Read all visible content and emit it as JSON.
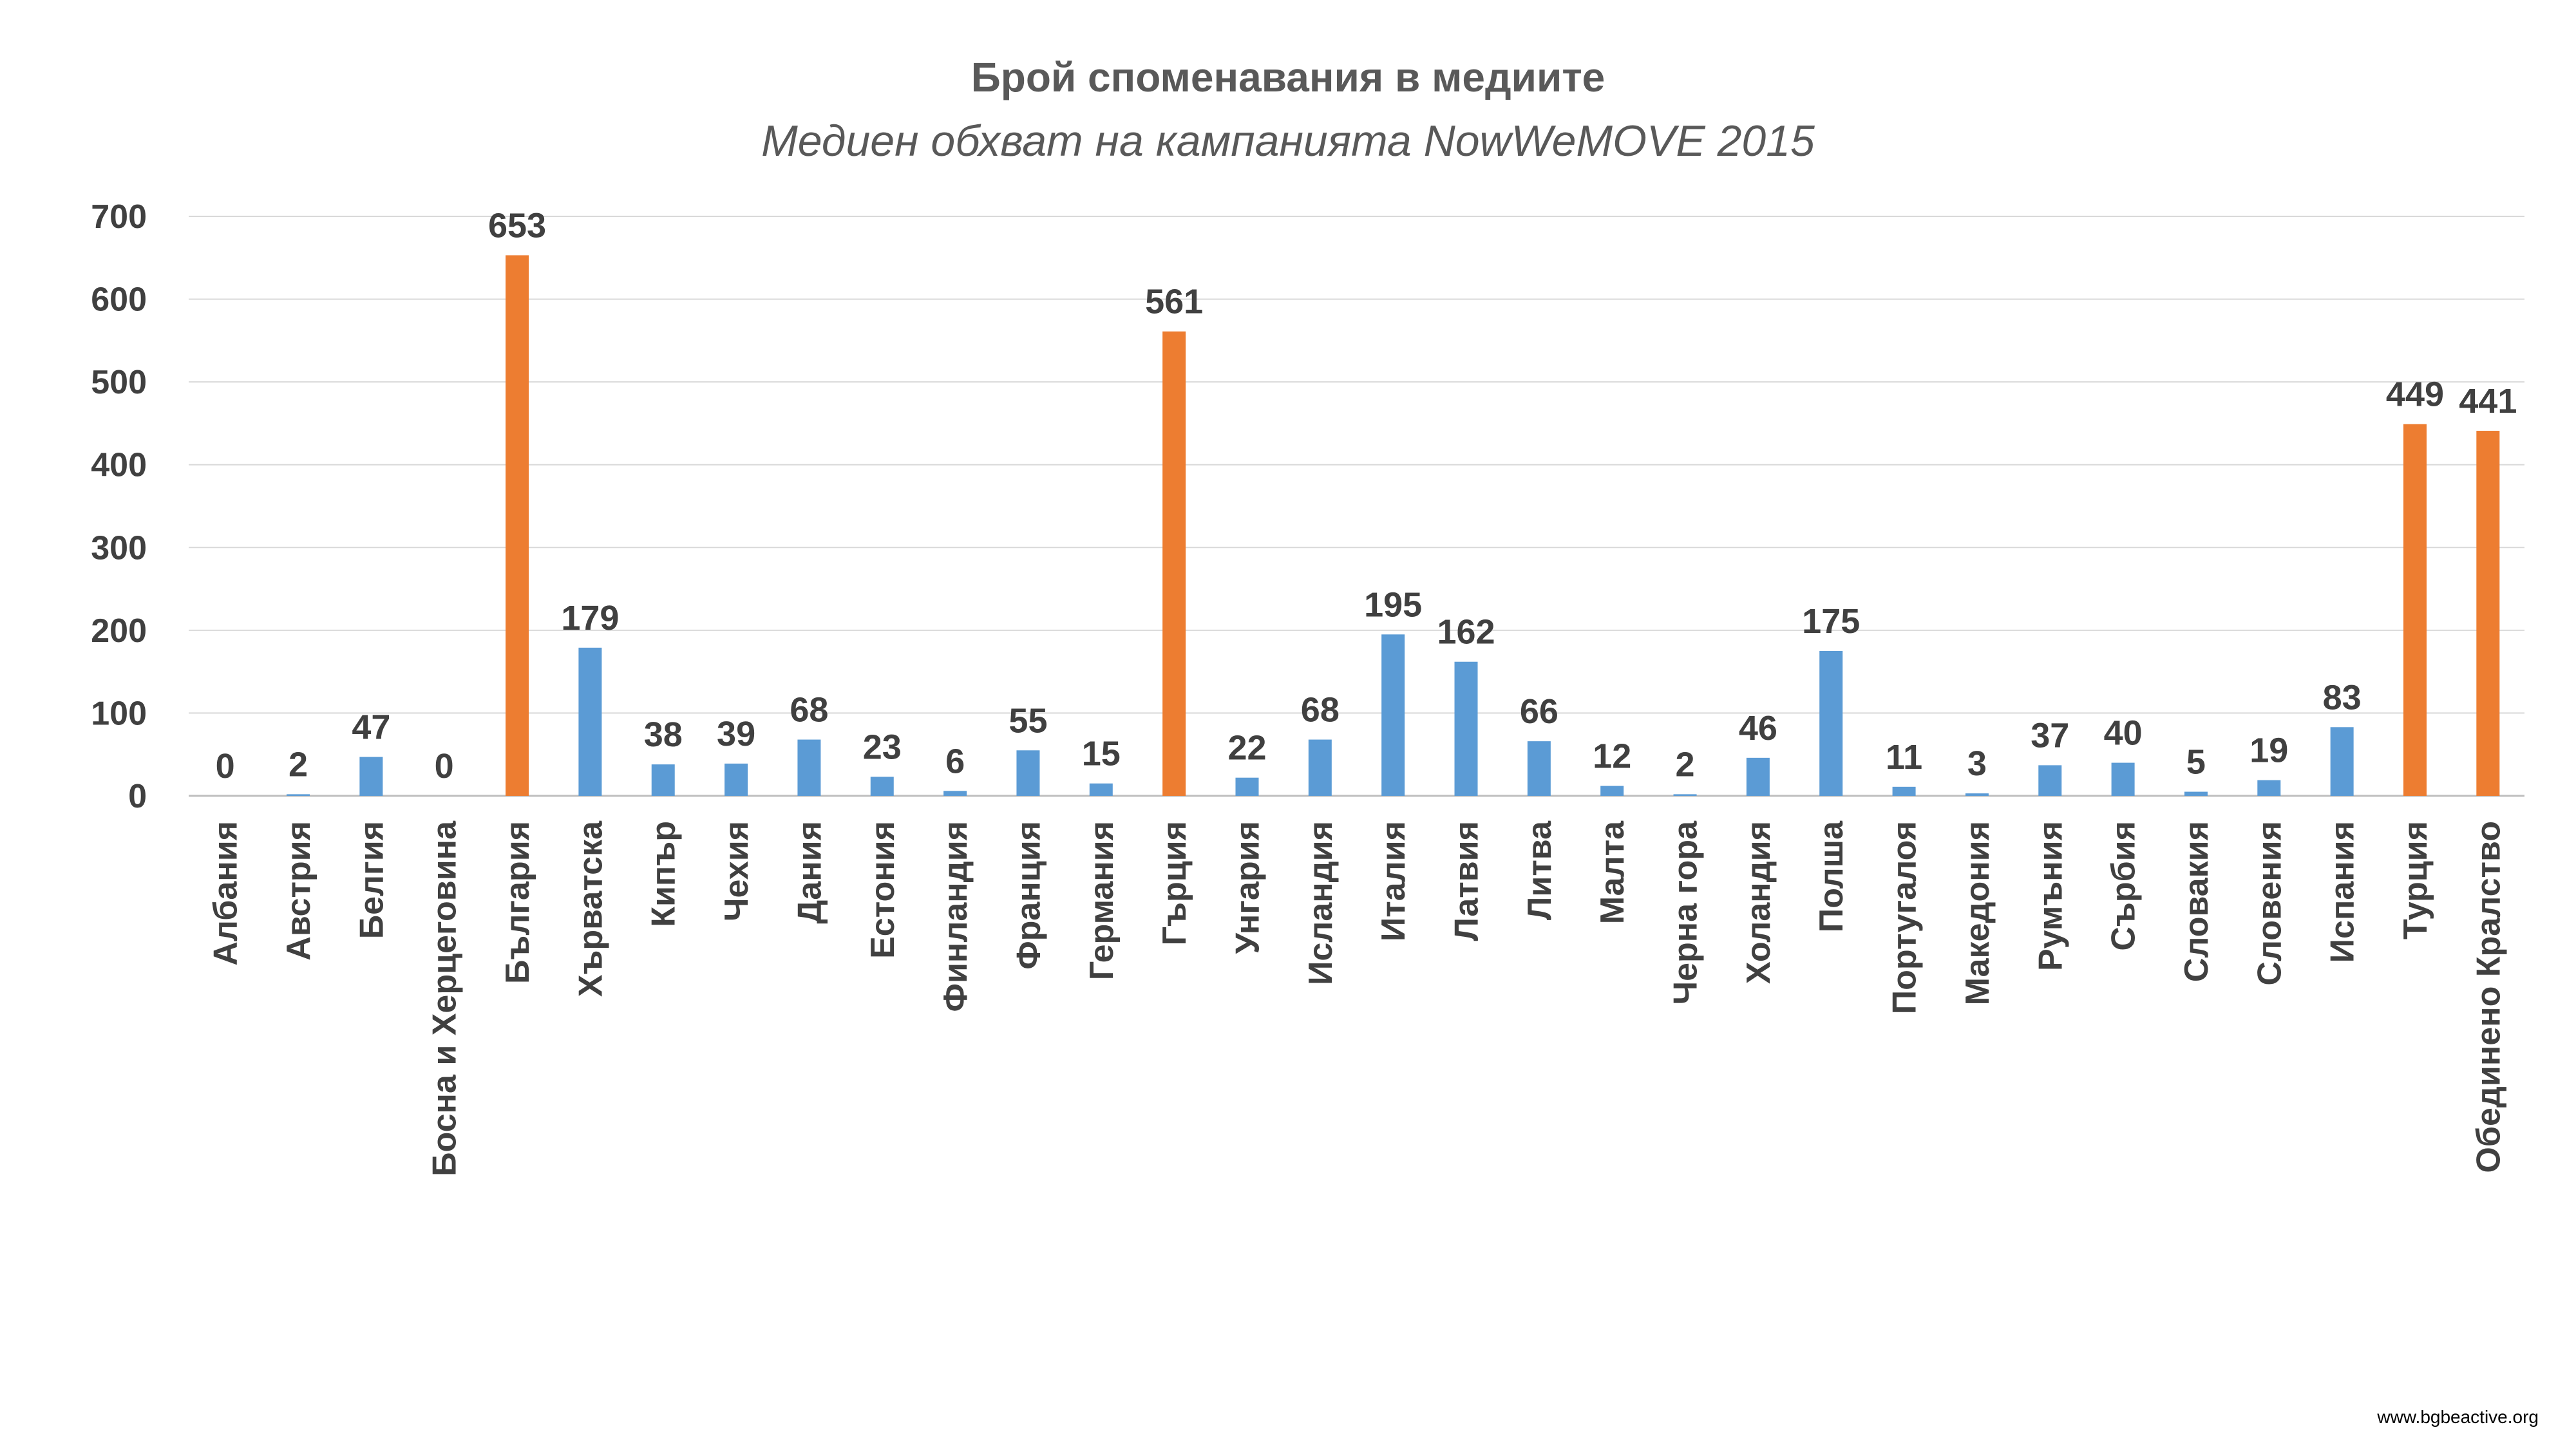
{
  "chart_data": {
    "type": "bar",
    "title": "Брой споменавания в медиите",
    "subtitle": "Медиен обхват на кампанията NowWeMOVE 2015",
    "categories": [
      "Албания",
      "Австрия",
      "Белгия",
      "Босна и Херцеговина",
      "България",
      "Хърватска",
      "Кипър",
      "Чехия",
      "Дания",
      "Естония",
      "Финландия",
      "Франция",
      "Германия",
      "Гърция",
      "Унгария",
      "Исландия",
      "Италия",
      "Латвия",
      "Литва",
      "Малта",
      "Черна гора",
      "Холандия",
      "Полша",
      "Португалоя",
      "Македония",
      "Румъния",
      "Сърбия",
      "Словакия",
      "Словения",
      "Испания",
      "Турция",
      "Обединено Кралство"
    ],
    "values": [
      0,
      2,
      47,
      0,
      653,
      179,
      38,
      39,
      68,
      23,
      6,
      55,
      15,
      561,
      22,
      68,
      195,
      162,
      66,
      12,
      2,
      46,
      175,
      11,
      3,
      37,
      40,
      5,
      19,
      83,
      449,
      441
    ],
    "highlight": [
      "България",
      "Гърция",
      "Турция",
      "Обединено Кралство"
    ],
    "colors": {
      "default": "#5B9BD5",
      "highlight": "#ED7D31"
    },
    "ylim": [
      0,
      700
    ],
    "yticks": [
      0,
      100,
      200,
      300,
      400,
      500,
      600,
      700
    ],
    "grid": true,
    "xlabel": "",
    "ylabel": ""
  },
  "footer": "www.bgbeactive.org"
}
